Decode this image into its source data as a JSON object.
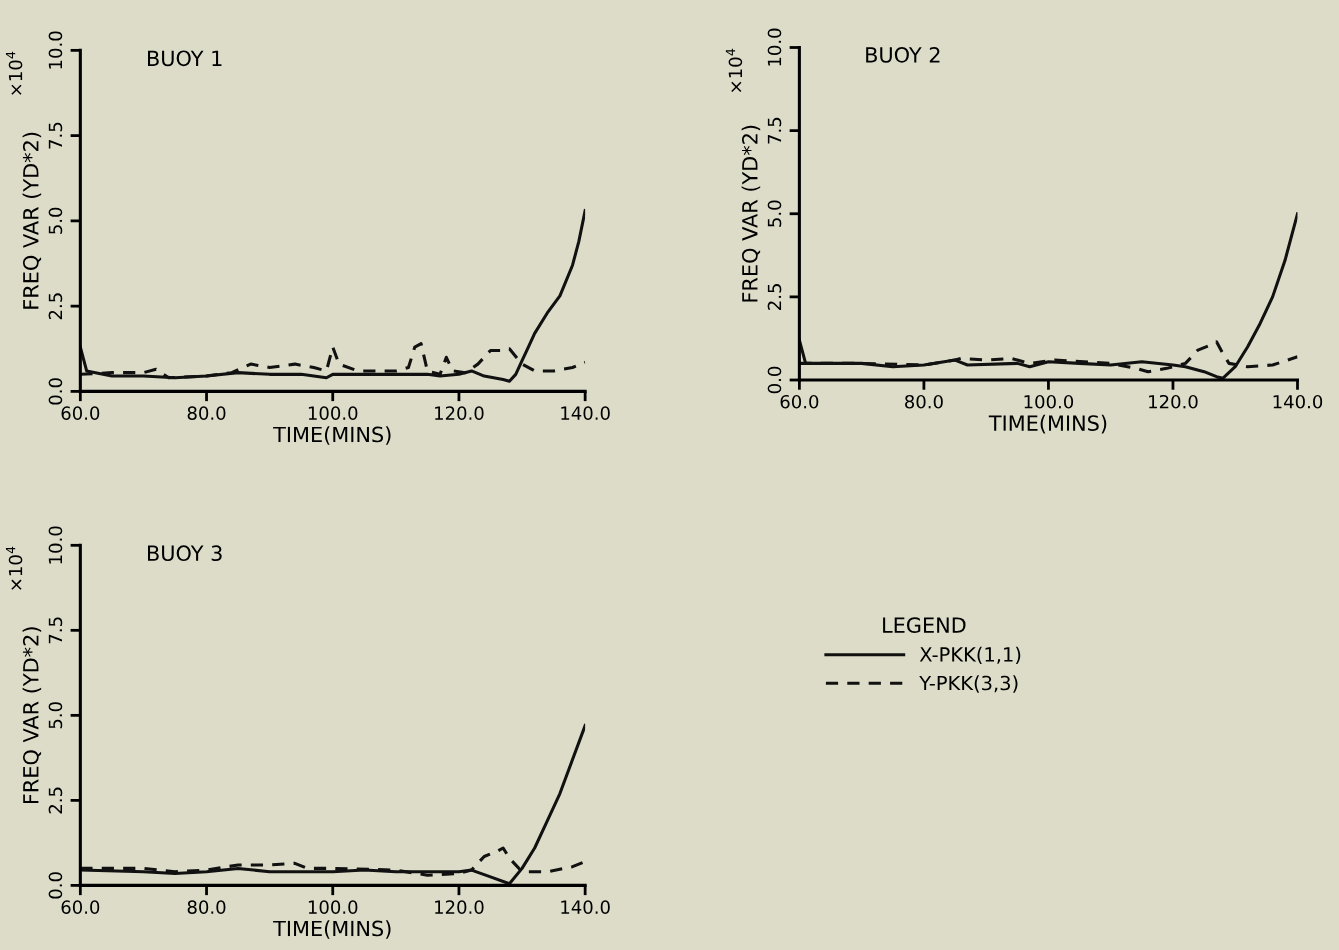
{
  "chart_data": [
    {
      "type": "line",
      "title": "BUOY 1",
      "xlabel": "TIME(MINS)",
      "ylabel": "FREQ VAR (YD*2)",
      "annotations": [
        "×10$^{4}$"
      ],
      "legend_title": "LEGEND",
      "xlim": [
        60,
        140
      ],
      "xticks": [
        {
          "value": 60,
          "label": "60.0"
        },
        {
          "value": 80,
          "label": "80.0"
        },
        {
          "value": 100,
          "label": "100.0"
        },
        {
          "value": 120,
          "label": "120.0"
        },
        {
          "value": 140,
          "label": "140.0"
        }
      ],
      "ylim": [
        0,
        10
      ],
      "yticks": [
        {
          "value": 0,
          "label": "0.0"
        },
        {
          "value": 2.5,
          "label": "2.5"
        },
        {
          "value": 5,
          "label": "5.0"
        },
        {
          "value": 7.5,
          "label": "7.5"
        },
        {
          "value": 10,
          "label": "10.0"
        }
      ],
      "grid": false,
      "legend": "bottom right",
      "series": [
        {
          "name": "X-PKK(1,1)",
          "color": "#111111",
          "line_style": "solid",
          "x": [
            60,
            61,
            65,
            70,
            75,
            80,
            85,
            90,
            95,
            99,
            100,
            105,
            110,
            115,
            117,
            120,
            122,
            124,
            127,
            128,
            129,
            130,
            131,
            132,
            134,
            136,
            138,
            139,
            140
          ],
          "values": [
            1.3,
            0.6,
            0.45,
            0.45,
            0.4,
            0.45,
            0.55,
            0.5,
            0.5,
            0.4,
            0.5,
            0.5,
            0.5,
            0.5,
            0.45,
            0.5,
            0.6,
            0.45,
            0.35,
            0.3,
            0.5,
            0.9,
            1.3,
            1.7,
            2.3,
            2.8,
            3.7,
            4.4,
            5.3
          ]
        },
        {
          "name": "Y-PKK(3,3)",
          "color": "#111111",
          "line_style": "dashed",
          "x": [
            60,
            65,
            70,
            72,
            74,
            80,
            84,
            87,
            90,
            94,
            97,
            99,
            100,
            101,
            104,
            110,
            112,
            113,
            114,
            115,
            117,
            118,
            119,
            121,
            123,
            125,
            127,
            128,
            130,
            132,
            135,
            138,
            140
          ],
          "values": [
            0.5,
            0.55,
            0.55,
            0.65,
            0.4,
            0.45,
            0.55,
            0.8,
            0.7,
            0.8,
            0.7,
            0.6,
            1.3,
            0.8,
            0.6,
            0.6,
            0.7,
            1.3,
            1.4,
            0.6,
            0.5,
            1.0,
            0.6,
            0.55,
            0.8,
            1.2,
            1.2,
            1.25,
            0.8,
            0.6,
            0.6,
            0.7,
            0.85
          ]
        }
      ]
    },
    {
      "type": "line",
      "title": "BUOY 2",
      "xlabel": "TIME(MINS)",
      "ylabel": "FREQ VAR (YD*2)",
      "annotations": [
        "×10$^{4}$"
      ],
      "xlim": [
        60,
        140
      ],
      "xticks": [
        {
          "value": 60,
          "label": "60.0"
        },
        {
          "value": 80,
          "label": "80.0"
        },
        {
          "value": 100,
          "label": "100.0"
        },
        {
          "value": 120,
          "label": "120.0"
        },
        {
          "value": 140,
          "label": "140.0"
        }
      ],
      "ylim": [
        0,
        10
      ],
      "yticks": [
        {
          "value": 0,
          "label": "0.0"
        },
        {
          "value": 2.5,
          "label": "2.5"
        },
        {
          "value": 5,
          "label": "5.0"
        },
        {
          "value": 7.5,
          "label": "7.5"
        },
        {
          "value": 10,
          "label": "10.0"
        }
      ],
      "grid": false,
      "series": [
        {
          "color": "#111111",
          "line_style": "solid",
          "x": [
            60,
            61,
            70,
            75,
            80,
            85,
            87,
            95,
            97,
            100,
            105,
            110,
            115,
            120,
            122,
            125,
            127,
            128,
            130,
            132,
            134,
            136,
            138,
            140
          ],
          "values": [
            1.2,
            0.5,
            0.5,
            0.4,
            0.45,
            0.6,
            0.45,
            0.5,
            0.4,
            0.55,
            0.5,
            0.45,
            0.55,
            0.45,
            0.4,
            0.25,
            0.1,
            0.05,
            0.4,
            1.0,
            1.7,
            2.5,
            3.6,
            5.0
          ]
        },
        {
          "color": "#111111",
          "line_style": "dashed",
          "x": [
            60,
            70,
            80,
            85,
            86,
            90,
            94,
            97,
            101,
            110,
            114,
            116,
            119,
            122,
            124,
            126,
            127,
            128,
            129,
            132,
            136,
            140
          ],
          "values": [
            0.5,
            0.5,
            0.45,
            0.6,
            0.65,
            0.6,
            0.65,
            0.5,
            0.6,
            0.5,
            0.35,
            0.25,
            0.35,
            0.5,
            0.9,
            1.05,
            1.15,
            0.8,
            0.5,
            0.4,
            0.45,
            0.7
          ]
        }
      ]
    },
    {
      "type": "line",
      "title": "BUOY 3",
      "xlabel": "TIME(MINS)",
      "ylabel": "FREQ VAR (YD*2)",
      "annotations": [
        "×10$^{4}$"
      ],
      "xlim": [
        60,
        140
      ],
      "xticks": [
        {
          "value": 60,
          "label": "60.0"
        },
        {
          "value": 80,
          "label": "80.0"
        },
        {
          "value": 100,
          "label": "100.0"
        },
        {
          "value": 120,
          "label": "120.0"
        },
        {
          "value": 140,
          "label": "140.0"
        }
      ],
      "ylim": [
        0,
        10
      ],
      "yticks": [
        {
          "value": 0,
          "label": "0.0"
        },
        {
          "value": 2.5,
          "label": "2.5"
        },
        {
          "value": 5,
          "label": "5.0"
        },
        {
          "value": 7.5,
          "label": "7.5"
        },
        {
          "value": 10,
          "label": "10.0"
        }
      ],
      "grid": false,
      "series": [
        {
          "color": "#111111",
          "line_style": "solid",
          "x": [
            60,
            70,
            75,
            80,
            85,
            90,
            100,
            105,
            110,
            115,
            120,
            122,
            125,
            128,
            130,
            132,
            134,
            136,
            138,
            140
          ],
          "values": [
            0.45,
            0.4,
            0.35,
            0.4,
            0.5,
            0.4,
            0.4,
            0.45,
            0.4,
            0.4,
            0.4,
            0.45,
            0.25,
            0.05,
            0.5,
            1.1,
            1.9,
            2.7,
            3.7,
            4.7
          ]
        },
        {
          "color": "#111111",
          "line_style": "dashed",
          "x": [
            60,
            70,
            75,
            80,
            85,
            90,
            94,
            96,
            100,
            110,
            115,
            120,
            122,
            124,
            126,
            127,
            128,
            130,
            134,
            138,
            140
          ],
          "values": [
            0.5,
            0.5,
            0.4,
            0.45,
            0.6,
            0.6,
            0.65,
            0.5,
            0.5,
            0.45,
            0.3,
            0.35,
            0.45,
            0.85,
            1.0,
            1.1,
            0.8,
            0.4,
            0.4,
            0.55,
            0.7
          ]
        }
      ]
    }
  ]
}
